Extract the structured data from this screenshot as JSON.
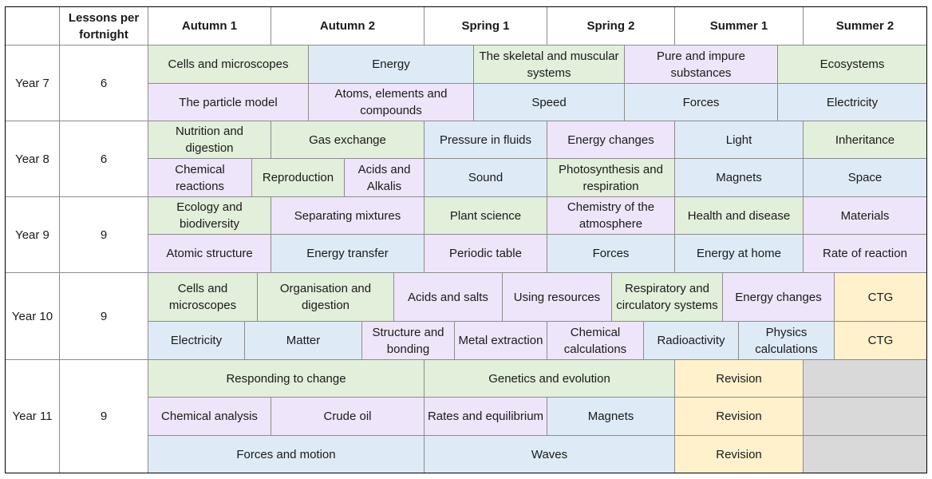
{
  "colors": {
    "biology": "#e2efda",
    "chemistry": "#eee5fb",
    "physics": "#deebf7",
    "exam": "#fff1cc",
    "empty": "#d9d9d9"
  },
  "header": {
    "corner": "",
    "lessons_label": "Lessons per fortnight",
    "terms": [
      "Autumn 1",
      "Autumn 2",
      "Spring 1",
      "Spring 2",
      "Summer 1",
      "Summer 2"
    ]
  },
  "years": [
    {
      "label": "Year 7",
      "lessons": "6",
      "rows": [
        [
          {
            "text": "Cells and microscopes",
            "subject": "biology"
          },
          {
            "text": "Energy",
            "subject": "physics"
          },
          {
            "text": "The skeletal and muscular systems",
            "subject": "biology"
          },
          {
            "text": "Pure and impure substances",
            "subject": "chemistry"
          },
          {
            "text": "Ecosystems",
            "subject": "biology"
          }
        ],
        [
          {
            "text": "The particle model",
            "subject": "chemistry"
          },
          {
            "text": "Atoms, elements and compounds",
            "subject": "chemistry"
          },
          {
            "text": "Speed",
            "subject": "physics"
          },
          {
            "text": "Forces",
            "subject": "physics"
          },
          {
            "text": "Electricity",
            "subject": "physics"
          }
        ]
      ]
    },
    {
      "label": "Year 8",
      "lessons": "6",
      "rows": [
        [
          {
            "text": "Nutrition and digestion",
            "subject": "biology"
          },
          {
            "text": "Gas exchange",
            "subject": "biology"
          },
          {
            "text": "Pressure in fluids",
            "subject": "physics"
          },
          {
            "text": "Energy changes",
            "subject": "chemistry"
          },
          {
            "text": "Light",
            "subject": "physics"
          },
          {
            "text": "Inheritance",
            "subject": "biology"
          }
        ],
        [
          {
            "text": "Chemical reactions",
            "subject": "chemistry"
          },
          {
            "text": "Reproduction",
            "subject": "biology"
          },
          {
            "text": "Acids and Alkalis",
            "subject": "chemistry"
          },
          {
            "text": "Sound",
            "subject": "physics"
          },
          {
            "text": "Photosynthesis and respiration",
            "subject": "biology"
          },
          {
            "text": "Magnets",
            "subject": "physics"
          },
          {
            "text": "Space",
            "subject": "physics"
          }
        ]
      ]
    },
    {
      "label": "Year 9",
      "lessons": "9",
      "rows": [
        [
          {
            "text": "Ecology and biodiversity",
            "subject": "biology"
          },
          {
            "text": "Separating mixtures",
            "subject": "chemistry"
          },
          {
            "text": "Plant science",
            "subject": "biology"
          },
          {
            "text": "Chemistry of the atmosphere",
            "subject": "chemistry"
          },
          {
            "text": "Health and disease",
            "subject": "biology"
          },
          {
            "text": "Materials",
            "subject": "chemistry"
          }
        ],
        [
          {
            "text": "Atomic structure",
            "subject": "chemistry"
          },
          {
            "text": "Energy transfer",
            "subject": "physics"
          },
          {
            "text": "Periodic table",
            "subject": "chemistry"
          },
          {
            "text": "Forces",
            "subject": "physics"
          },
          {
            "text": "Energy at home",
            "subject": "physics"
          },
          {
            "text": "Rate of reaction",
            "subject": "chemistry"
          }
        ]
      ]
    },
    {
      "label": "Year 10",
      "lessons": "9",
      "rows": [
        [
          {
            "text": "Cells and microscopes",
            "subject": "biology"
          },
          {
            "text": "Organisation and digestion",
            "subject": "biology"
          },
          {
            "text": "Acids and salts",
            "subject": "chemistry"
          },
          {
            "text": "Using resources",
            "subject": "chemistry"
          },
          {
            "text": "Respiratory and circulatory systems",
            "subject": "biology"
          },
          {
            "text": "Energy changes",
            "subject": "chemistry"
          },
          {
            "text": "CTG",
            "subject": "exam"
          }
        ],
        [
          {
            "text": "Electricity",
            "subject": "physics"
          },
          {
            "text": "Matter",
            "subject": "physics"
          },
          {
            "text": "Structure and bonding",
            "subject": "chemistry"
          },
          {
            "text": "Metal extraction",
            "subject": "chemistry"
          },
          {
            "text": "Chemical calculations",
            "subject": "chemistry"
          },
          {
            "text": "Radioactivity",
            "subject": "physics"
          },
          {
            "text": "Physics calculations",
            "subject": "physics"
          },
          {
            "text": "CTG",
            "subject": "exam"
          }
        ]
      ]
    },
    {
      "label": "Year 11",
      "lessons": "9",
      "rows": [
        [
          {
            "text": "Responding to change",
            "subject": "biology"
          },
          {
            "text": "Genetics and evolution",
            "subject": "biology"
          },
          {
            "text": "Revision",
            "subject": "exam"
          },
          {
            "text": "",
            "subject": "empty"
          }
        ],
        [
          {
            "text": "Chemical analysis",
            "subject": "chemistry"
          },
          {
            "text": "Crude oil",
            "subject": "chemistry"
          },
          {
            "text": "Rates and equilibrium",
            "subject": "chemistry"
          },
          {
            "text": "Magnets",
            "subject": "physics"
          },
          {
            "text": "Revision",
            "subject": "exam"
          },
          {
            "text": "",
            "subject": "empty"
          }
        ],
        [
          {
            "text": "Forces and motion",
            "subject": "physics"
          },
          {
            "text": "Waves",
            "subject": "physics"
          },
          {
            "text": "Revision",
            "subject": "exam"
          },
          {
            "text": "",
            "subject": "empty"
          }
        ]
      ]
    }
  ]
}
